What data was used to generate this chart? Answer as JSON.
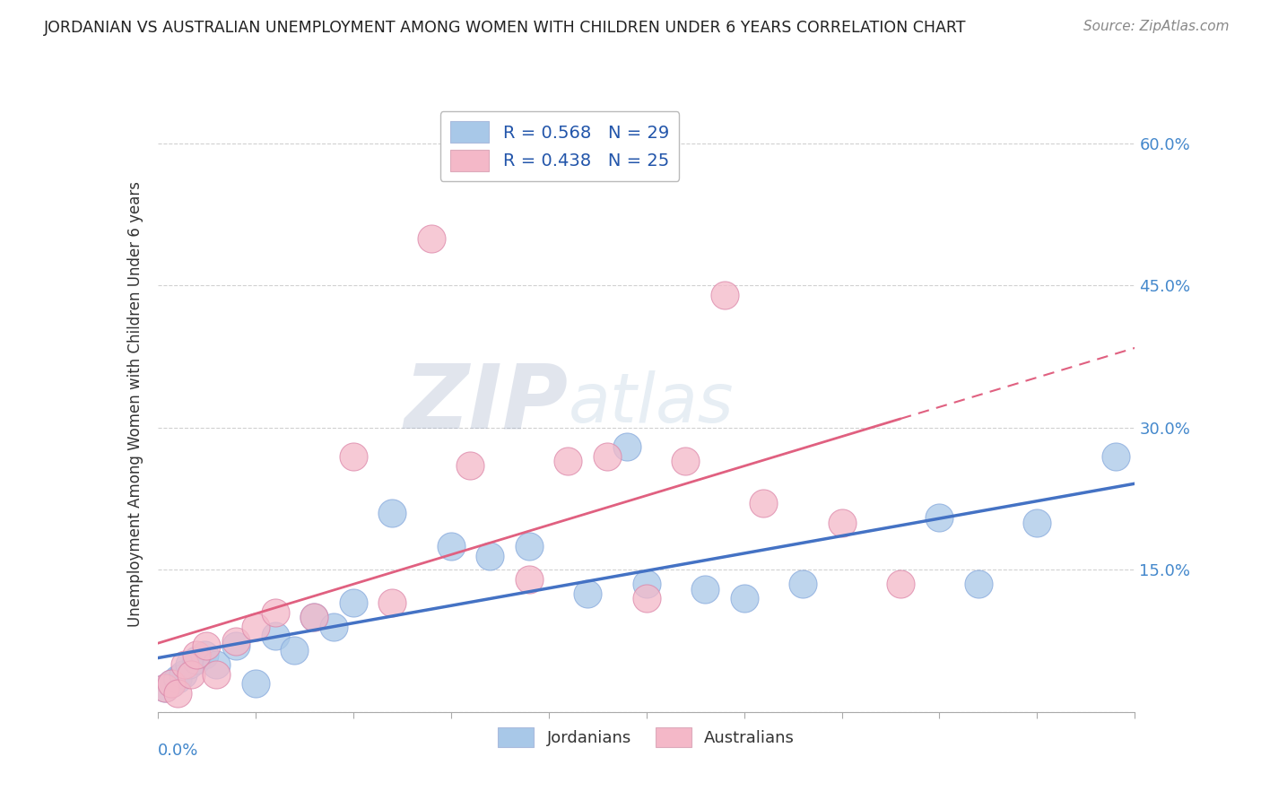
{
  "title": "JORDANIAN VS AUSTRALIAN UNEMPLOYMENT AMONG WOMEN WITH CHILDREN UNDER 6 YEARS CORRELATION CHART",
  "source": "Source: ZipAtlas.com",
  "ylabel": "Unemployment Among Women with Children Under 6 years",
  "R_jordanian": 0.568,
  "N_jordanian": 29,
  "R_australian": 0.438,
  "N_australian": 25,
  "xlim": [
    0.0,
    0.05
  ],
  "ylim": [
    0.0,
    0.65
  ],
  "yticks": [
    0.0,
    0.15,
    0.3,
    0.45,
    0.6
  ],
  "ytick_labels": [
    "",
    "15.0%",
    "30.0%",
    "45.0%",
    "60.0%"
  ],
  "color_jordanian": "#a8c8e8",
  "color_australian": "#f4b8c8",
  "color_jordanian_line": "#4472c4",
  "color_australian_line": "#e06080",
  "watermark_zip": "ZIP",
  "watermark_atlas": "atlas",
  "jordanian_x": [
    0.0004,
    0.0007,
    0.001,
    0.0013,
    0.0016,
    0.002,
    0.0024,
    0.003,
    0.004,
    0.005,
    0.006,
    0.007,
    0.008,
    0.009,
    0.01,
    0.012,
    0.015,
    0.017,
    0.019,
    0.022,
    0.024,
    0.025,
    0.028,
    0.03,
    0.033,
    0.04,
    0.042,
    0.045,
    0.049
  ],
  "jordanian_y": [
    0.025,
    0.03,
    0.035,
    0.04,
    0.05,
    0.055,
    0.06,
    0.05,
    0.07,
    0.03,
    0.08,
    0.065,
    0.1,
    0.09,
    0.115,
    0.21,
    0.175,
    0.165,
    0.175,
    0.125,
    0.28,
    0.135,
    0.13,
    0.12,
    0.135,
    0.205,
    0.135,
    0.2,
    0.27
  ],
  "australian_x": [
    0.0004,
    0.0007,
    0.001,
    0.0014,
    0.0017,
    0.002,
    0.0025,
    0.003,
    0.004,
    0.005,
    0.006,
    0.008,
    0.01,
    0.012,
    0.014,
    0.016,
    0.019,
    0.021,
    0.023,
    0.025,
    0.027,
    0.029,
    0.031,
    0.035,
    0.038
  ],
  "australian_y": [
    0.025,
    0.03,
    0.02,
    0.05,
    0.04,
    0.06,
    0.07,
    0.04,
    0.075,
    0.09,
    0.105,
    0.1,
    0.27,
    0.115,
    0.5,
    0.26,
    0.14,
    0.265,
    0.27,
    0.12,
    0.265,
    0.44,
    0.22,
    0.2,
    0.135
  ]
}
